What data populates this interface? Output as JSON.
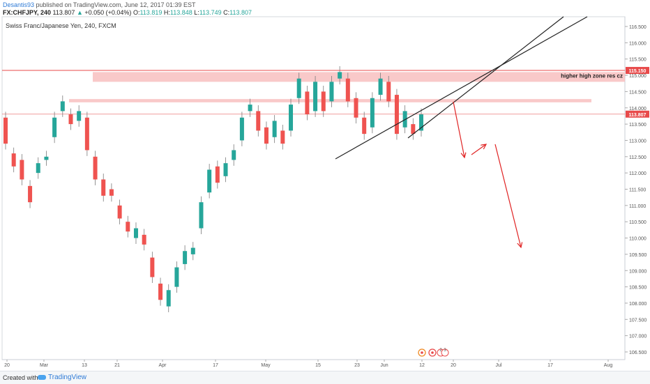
{
  "header": {
    "author": "Desantis93",
    "published": "published on TradingView.com, June 12, 2017 01:39 EST",
    "symbol": "FX:CHFJPY, 240",
    "last": "113.807",
    "change": "+0.050 (+0.04%)",
    "open_label": "O:",
    "open": "113.819",
    "high_label": "H:",
    "high": "113.848",
    "low_label": "L:",
    "low": "113.749",
    "close_label": "C:",
    "close": "113.807"
  },
  "chart_data": {
    "type": "candlestick",
    "title": "Swiss Franc/Japanese Yen, 240, FXCM",
    "xlabel": "",
    "ylabel": "",
    "ylim": [
      106.2,
      117.1
    ],
    "y_ticks": [
      "116.500",
      "116.000",
      "115.500",
      "115.000",
      "114.500",
      "114.000",
      "113.500",
      "113.000",
      "112.500",
      "112.000",
      "111.500",
      "111.000",
      "110.500",
      "110.000",
      "109.500",
      "109.000",
      "108.500",
      "108.000",
      "107.500",
      "107.000",
      "106.500"
    ],
    "x_ticks": [
      "20",
      "Mar",
      "13",
      "21",
      "Apr",
      "17",
      "May",
      "15",
      "23",
      "Jun",
      "12",
      "20",
      "Jul",
      "17",
      "Aug"
    ],
    "series": [
      {
        "name": "",
        "values": [
          [
            113.7,
            112.9
          ],
          [
            112.6,
            112.2
          ],
          [
            112.4,
            111.8
          ],
          [
            111.6,
            111.1
          ],
          [
            112.0,
            112.3
          ],
          [
            112.4,
            112.5
          ],
          [
            113.1,
            113.7
          ],
          [
            113.9,
            114.2
          ],
          [
            113.8,
            113.5
          ],
          [
            113.6,
            113.9
          ],
          [
            113.7,
            112.7
          ],
          [
            112.5,
            111.8
          ],
          [
            111.8,
            111.3
          ],
          [
            111.5,
            111.3
          ],
          [
            111.0,
            110.6
          ],
          [
            110.5,
            110.2
          ],
          [
            110.0,
            110.3
          ],
          [
            110.1,
            109.8
          ],
          [
            109.4,
            108.8
          ],
          [
            108.6,
            108.1
          ],
          [
            107.9,
            108.4
          ],
          [
            108.5,
            109.1
          ],
          [
            109.2,
            109.6
          ],
          [
            109.5,
            109.7
          ],
          [
            110.3,
            111.1
          ],
          [
            111.4,
            112.1
          ],
          [
            112.2,
            111.7
          ],
          [
            111.9,
            112.3
          ],
          [
            112.4,
            112.7
          ],
          [
            113.0,
            113.7
          ],
          [
            113.9,
            114.1
          ],
          [
            113.9,
            113.3
          ],
          [
            113.4,
            112.9
          ],
          [
            113.1,
            113.6
          ],
          [
            113.3,
            112.9
          ],
          [
            113.3,
            114.1
          ],
          [
            114.3,
            114.9
          ],
          [
            114.5,
            113.8
          ],
          [
            113.9,
            114.8
          ],
          [
            114.5,
            113.9
          ],
          [
            114.2,
            114.8
          ],
          [
            114.9,
            115.1
          ],
          [
            114.9,
            114.2
          ],
          [
            114.3,
            113.7
          ],
          [
            113.7,
            113.2
          ],
          [
            113.4,
            114.3
          ],
          [
            114.4,
            114.9
          ],
          [
            114.8,
            114.2
          ],
          [
            114.4,
            113.2
          ],
          [
            113.4,
            113.9
          ],
          [
            113.5,
            113.2
          ],
          [
            113.3,
            113.8
          ]
        ]
      }
    ],
    "horizontal_levels": [
      115.15,
      113.807
    ],
    "zones": [
      {
        "label": "higher high zone res cz",
        "low": 114.8,
        "high": 115.1
      },
      {
        "label": "",
        "low": 114.17,
        "high": 114.27
      }
    ],
    "price_labels": [
      "115.150",
      "113.807"
    ],
    "event_marks": [
      "2",
      "3"
    ],
    "colors": {
      "up": "#26a69a",
      "down": "#ef5350",
      "wick": "#7a7a7a",
      "resistance_line": "#e84a4a",
      "zone_fill": "#f8bfc0",
      "trend_line": "#222222",
      "projection_arrow": "#e02424"
    }
  },
  "footer": {
    "created_with": "Created with",
    "brand": "TradingView"
  }
}
